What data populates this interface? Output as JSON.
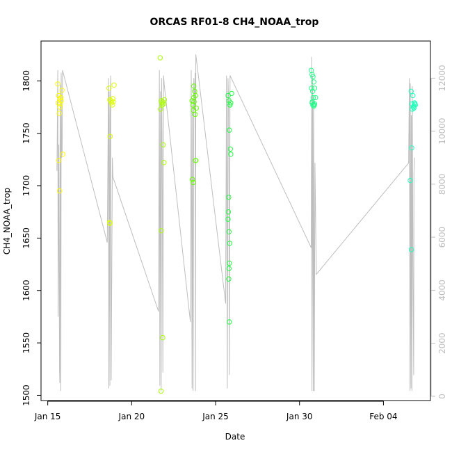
{
  "chart_data": {
    "type": "scatter",
    "title": "ORCAS RF01-8 CH4_NOAA_trop",
    "xlabel": "Date",
    "ylabel": "CH4_NOAA_trop",
    "x_ticks": [
      "Jan 15",
      "Jan 20",
      "Jan 25",
      "Jan 30",
      "Feb 04"
    ],
    "x_tick_days": [
      15,
      20,
      25,
      30,
      35
    ],
    "xlim_days": [
      14.6,
      37.8
    ],
    "y_ticks": [
      1500,
      1550,
      1600,
      1650,
      1700,
      1750,
      1800
    ],
    "ylim": [
      1495,
      1838
    ],
    "y2_ticks": [
      0,
      2000,
      4000,
      6000,
      8000,
      10000,
      12000
    ],
    "y2lim": [
      -160,
      13400
    ],
    "grid": false,
    "colors": {
      "axis": "#000000",
      "altitude_line": "#bebebe"
    },
    "series": [
      {
        "kind": "points",
        "flights": [
          {
            "color": "#ffff00",
            "points": [
              [
                15.6,
                1797
              ],
              [
                15.65,
                1786
              ],
              [
                15.7,
                1783
              ],
              [
                15.62,
                1779
              ],
              [
                15.75,
                1778
              ],
              [
                15.8,
                1781
              ],
              [
                15.68,
                1769
              ],
              [
                15.72,
                1775
              ],
              [
                15.85,
                1791
              ],
              [
                15.78,
                1784
              ],
              [
                15.9,
                1730
              ],
              [
                15.7,
                1695
              ],
              [
                15.66,
                1724
              ]
            ]
          },
          {
            "color": "#ddff00",
            "points": [
              [
                18.65,
                1793
              ],
              [
                18.7,
                1782
              ],
              [
                18.75,
                1781
              ],
              [
                18.8,
                1779
              ],
              [
                18.85,
                1777
              ],
              [
                18.9,
                1780
              ],
              [
                18.95,
                1796
              ],
              [
                18.72,
                1747
              ],
              [
                18.68,
                1665
              ],
              [
                18.7,
                1664
              ],
              [
                18.88,
                1783
              ]
            ]
          },
          {
            "color": "#aaff00",
            "points": [
              [
                21.7,
                1822
              ],
              [
                21.75,
                1781
              ],
              [
                21.8,
                1779
              ],
              [
                21.85,
                1780
              ],
              [
                21.9,
                1778
              ],
              [
                21.95,
                1782
              ],
              [
                21.72,
                1773
              ],
              [
                21.88,
                1739
              ],
              [
                21.92,
                1722
              ],
              [
                21.76,
                1657
              ],
              [
                21.85,
                1555
              ],
              [
                21.75,
                1504
              ],
              [
                21.82,
                1777
              ]
            ]
          },
          {
            "color": "#66ff00",
            "points": [
              [
                23.6,
                1781
              ],
              [
                23.65,
                1777
              ],
              [
                23.7,
                1795
              ],
              [
                23.75,
                1790
              ],
              [
                23.8,
                1786
              ],
              [
                23.68,
                1772
              ],
              [
                23.72,
                1780
              ],
              [
                23.78,
                1768
              ],
              [
                23.85,
                1774
              ],
              [
                23.62,
                1706
              ],
              [
                23.66,
                1703
              ],
              [
                23.8,
                1724
              ],
              [
                23.82,
                1724
              ],
              [
                23.7,
                1784
              ]
            ]
          },
          {
            "color": "#22ff44",
            "points": [
              [
                25.75,
                1786
              ],
              [
                25.8,
                1781
              ],
              [
                25.85,
                1777
              ],
              [
                25.9,
                1779
              ],
              [
                25.95,
                1788
              ],
              [
                25.82,
                1753
              ],
              [
                25.88,
                1735
              ],
              [
                25.9,
                1730
              ],
              [
                25.78,
                1689
              ],
              [
                25.76,
                1675
              ],
              [
                25.74,
                1668
              ],
              [
                25.8,
                1656
              ],
              [
                25.84,
                1645
              ],
              [
                25.82,
                1626
              ],
              [
                25.8,
                1621
              ],
              [
                25.78,
                1611
              ],
              [
                25.82,
                1570
              ],
              [
                25.86,
                1777
              ]
            ]
          },
          {
            "color": "#22ff88",
            "points": [
              [
                30.7,
                1810
              ],
              [
                30.75,
                1806
              ],
              [
                30.8,
                1804
              ],
              [
                30.85,
                1799
              ],
              [
                30.9,
                1793
              ],
              [
                30.72,
                1793
              ],
              [
                30.78,
                1790
              ],
              [
                30.82,
                1784
              ],
              [
                30.95,
                1784
              ],
              [
                30.75,
                1779
              ],
              [
                30.8,
                1777
              ],
              [
                30.85,
                1776
              ],
              [
                30.9,
                1778
              ],
              [
                30.88,
                1777
              ],
              [
                30.76,
                1780
              ]
            ]
          },
          {
            "color": "#22ffbb",
            "points": [
              [
                36.65,
                1790
              ],
              [
                36.75,
                1786
              ],
              [
                36.7,
                1778
              ],
              [
                36.8,
                1776
              ],
              [
                36.85,
                1779
              ],
              [
                36.9,
                1777
              ],
              [
                36.78,
                1775
              ],
              [
                36.72,
                1773
              ],
              [
                36.82,
                1774
              ],
              [
                36.68,
                1736
              ],
              [
                36.6,
                1705
              ],
              [
                36.66,
                1639
              ],
              [
                36.88,
                1778
              ]
            ]
          }
        ]
      },
      {
        "kind": "altitude_line",
        "axis": "right",
        "points": [
          [
            15.55,
            8500
          ],
          [
            15.6,
            12300
          ],
          [
            15.62,
            3000
          ],
          [
            15.66,
            9500
          ],
          [
            15.7,
            1000
          ],
          [
            15.72,
            500
          ],
          [
            15.74,
            11800
          ],
          [
            15.76,
            8800
          ],
          [
            15.78,
            200
          ],
          [
            15.8,
            12200
          ],
          [
            15.83,
            9000
          ],
          [
            15.86,
            9200
          ],
          [
            15.88,
            12300
          ],
          [
            18.55,
            5800
          ],
          [
            18.62,
            12000
          ],
          [
            18.64,
            300
          ],
          [
            18.66,
            11500
          ],
          [
            18.7,
            400
          ],
          [
            18.72,
            10600
          ],
          [
            18.75,
            12100
          ],
          [
            18.78,
            600
          ],
          [
            18.85,
            9000
          ],
          [
            18.88,
            8300
          ],
          [
            18.92,
            8200
          ],
          [
            21.6,
            3200
          ],
          [
            21.65,
            12300
          ],
          [
            21.68,
            400
          ],
          [
            21.72,
            11500
          ],
          [
            21.76,
            200
          ],
          [
            21.78,
            12000
          ],
          [
            21.82,
            9000
          ],
          [
            21.86,
            900
          ],
          [
            21.9,
            12100
          ],
          [
            21.95,
            11700
          ],
          [
            23.5,
            2800
          ],
          [
            23.55,
            12300
          ],
          [
            23.6,
            300
          ],
          [
            23.62,
            11000
          ],
          [
            23.66,
            200
          ],
          [
            23.7,
            12000
          ],
          [
            23.74,
            10800
          ],
          [
            23.78,
            12200
          ],
          [
            23.8,
            200
          ],
          [
            23.82,
            12900
          ],
          [
            25.6,
            3500
          ],
          [
            25.65,
            12100
          ],
          [
            25.7,
            300
          ],
          [
            25.74,
            12000
          ],
          [
            25.78,
            11000
          ],
          [
            25.82,
            800
          ],
          [
            25.86,
            12100
          ],
          [
            30.7,
            5600
          ],
          [
            30.72,
            12800
          ],
          [
            30.74,
            200
          ],
          [
            30.78,
            12100
          ],
          [
            30.82,
            200
          ],
          [
            30.84,
            11300
          ],
          [
            30.88,
            200
          ],
          [
            30.92,
            8800
          ],
          [
            31.0,
            4600
          ],
          [
            36.5,
            8800
          ],
          [
            36.55,
            12000
          ],
          [
            36.58,
            200
          ],
          [
            36.6,
            11800
          ],
          [
            36.64,
            300
          ],
          [
            36.66,
            10600
          ],
          [
            36.7,
            200
          ],
          [
            36.72,
            11700
          ],
          [
            36.76,
            4300
          ],
          [
            36.8,
            800
          ],
          [
            36.82,
            8400
          ],
          [
            36.86,
            9000
          ]
        ]
      }
    ]
  }
}
